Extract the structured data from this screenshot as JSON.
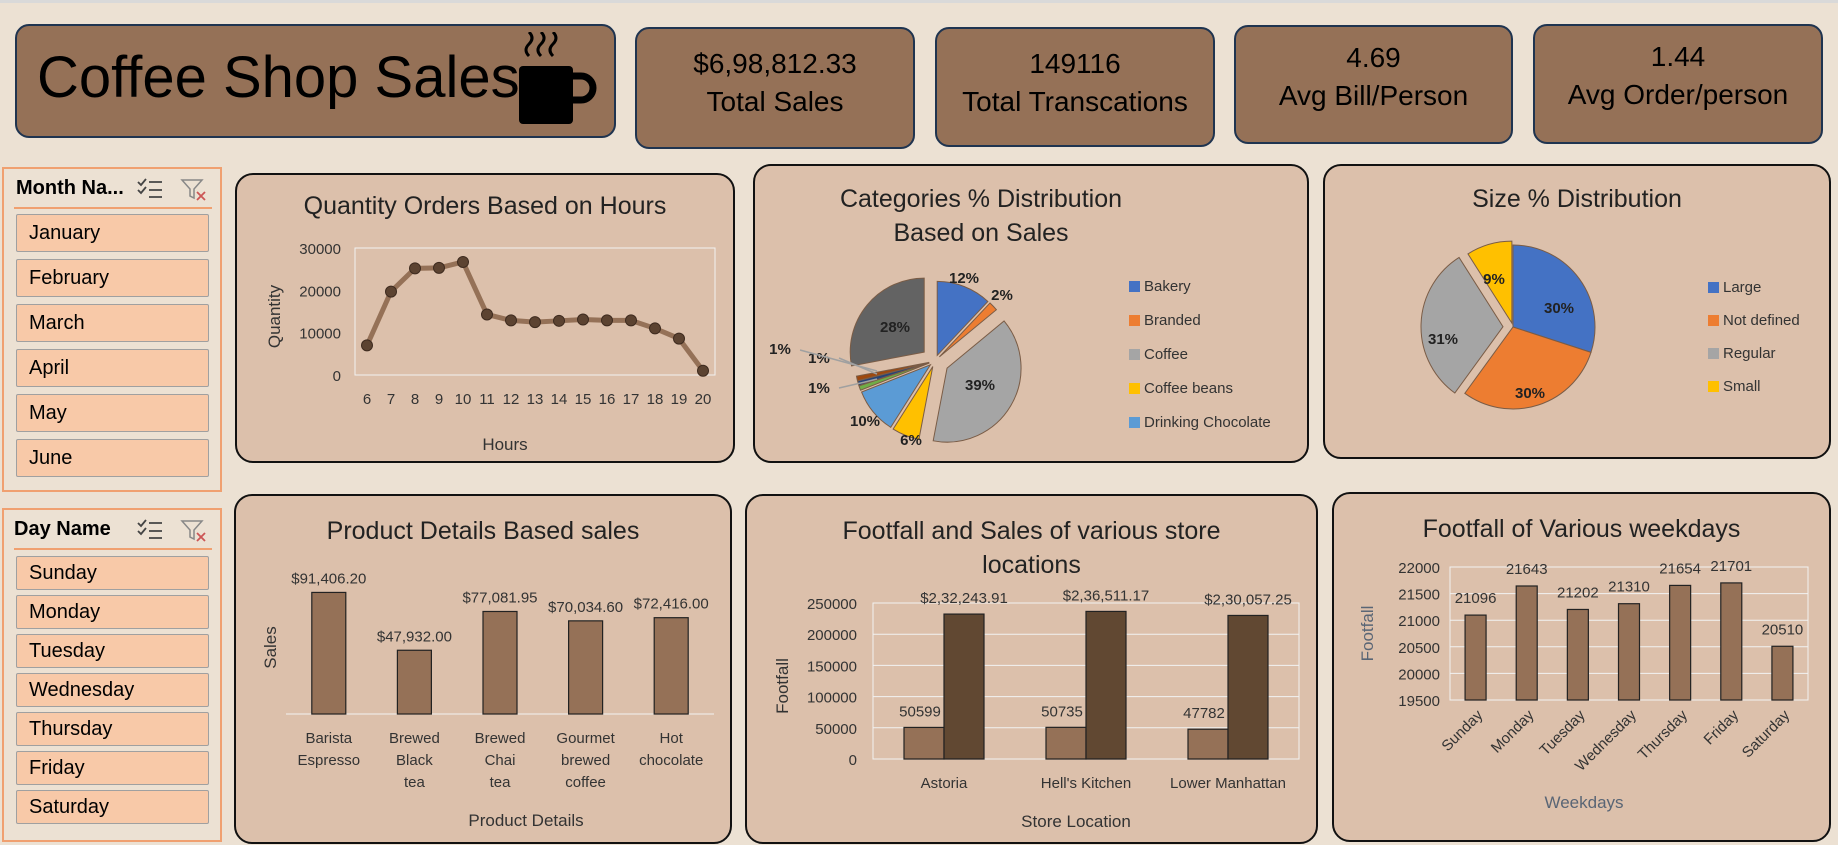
{
  "title": "Coffee Shop Sales",
  "kpis": [
    {
      "value": "$6,98,812.33",
      "label": "Total Sales"
    },
    {
      "value": "149116",
      "label": "Total Transcations"
    },
    {
      "value": "4.69",
      "label": "Avg Bill/Person"
    },
    {
      "value": "1.44",
      "label": "Avg Order/person"
    }
  ],
  "month_slicer": {
    "header": "Month Na...",
    "items": [
      "January",
      "February",
      "March",
      "April",
      "May",
      "June"
    ]
  },
  "day_slicer": {
    "header": "Day Name",
    "items": [
      "Sunday",
      "Monday",
      "Tuesday",
      "Wednesday",
      "Thursday",
      "Friday",
      "Saturday"
    ]
  },
  "colors": {
    "brown_light": "#957157",
    "brown_dark": "#614832",
    "panel": "#dcc0ab",
    "line": "#957157",
    "line_marker": "#5c4331"
  },
  "chart_data": [
    {
      "id": "hours",
      "type": "line",
      "title": "Quantity Orders Based on Hours",
      "xlabel": "Hours",
      "ylabel": "Quantity",
      "x": [
        "6",
        "7",
        "8",
        "9",
        "10",
        "11",
        "12",
        "13",
        "14",
        "15",
        "16",
        "17",
        "18",
        "19",
        "20"
      ],
      "values": [
        7000,
        19700,
        25200,
        25300,
        26700,
        14300,
        12900,
        12500,
        12800,
        13100,
        12900,
        12900,
        11000,
        8600,
        1000
      ],
      "ylim": [
        0,
        30000
      ],
      "yticks": [
        "30000",
        "20000",
        "10000",
        "0"
      ],
      "grid": false
    },
    {
      "id": "categories",
      "type": "pie",
      "title": "Categories % Distribution Based on Sales",
      "legend": [
        "Bakery",
        "Branded",
        "Coffee",
        "Coffee beans",
        "Drinking Chocolate"
      ],
      "legend_position": "right",
      "slices": [
        {
          "name": "Bakery",
          "value": 12,
          "label": "12%",
          "color": "#4472c4"
        },
        {
          "name": "Branded",
          "value": 2,
          "label": "2%",
          "color": "#ed7d31"
        },
        {
          "name": "Coffee",
          "value": 39,
          "label": "39%",
          "color": "#a5a5a5"
        },
        {
          "name": "Coffee beans",
          "value": 6,
          "label": "6%",
          "color": "#ffc000"
        },
        {
          "name": "Drinking Chocolate",
          "value": 10,
          "label": "10%",
          "color": "#5b9bd5"
        },
        {
          "name": "",
          "value": 1,
          "label": "1%",
          "color": "#70ad47"
        },
        {
          "name": "",
          "value": 1,
          "label": "1%",
          "color": "#264478"
        },
        {
          "name": "",
          "value": 1,
          "label": "1%",
          "color": "#9e480e"
        },
        {
          "name": "",
          "value": 28,
          "label": "28%",
          "color": "#636363"
        }
      ]
    },
    {
      "id": "size",
      "type": "pie",
      "title": "Size % Distribution",
      "legend": [
        "Large",
        "Not defined",
        "Regular",
        "Small"
      ],
      "legend_position": "right",
      "slices": [
        {
          "name": "Large",
          "value": 30,
          "label": "30%",
          "color": "#4472c4"
        },
        {
          "name": "Not defined",
          "value": 30,
          "label": "30%",
          "color": "#ed7d31"
        },
        {
          "name": "Regular",
          "value": 31,
          "label": "31%",
          "color": "#a5a5a5"
        },
        {
          "name": "Small",
          "value": 9,
          "label": "9%",
          "color": "#ffc000"
        }
      ]
    },
    {
      "id": "products",
      "type": "bar",
      "title": "Product Details Based sales",
      "xlabel": "Product Details",
      "ylabel": "Sales",
      "categories": [
        "Barista Espresso",
        "Brewed Black tea",
        "Brewed Chai tea",
        "Gourmet brewed coffee",
        "Hot chocolate"
      ],
      "values": [
        91406.2,
        47932.0,
        77081.95,
        70034.6,
        72416.0
      ],
      "value_labels": [
        "$91,406.20",
        "$47,932.00",
        "$77,081.95",
        "$70,034.60",
        "$72,416.00"
      ],
      "ylim": [
        0,
        100000
      ]
    },
    {
      "id": "stores",
      "type": "bar",
      "title": "Footfall and Sales of various store locations",
      "xlabel": "Store Location",
      "ylabel": "Footfall",
      "categories": [
        "Astoria",
        "Hell's Kitchen",
        "Lower Manhattan"
      ],
      "series": [
        {
          "values": [
            50599,
            50735,
            47782
          ],
          "labels": [
            "50599",
            "50735",
            "47782"
          ],
          "color": "#957157"
        },
        {
          "values": [
            232243.91,
            236511.17,
            230057.25
          ],
          "labels": [
            "$2,32,243.91",
            "$2,36,511.17",
            "$2,30,057.25"
          ],
          "color": "#614832"
        }
      ],
      "ylim": [
        0,
        250000
      ],
      "yticks": [
        "250000",
        "200000",
        "150000",
        "100000",
        "50000",
        "0"
      ],
      "grid": true
    },
    {
      "id": "weekdays",
      "type": "bar",
      "title": "Footfall of Various weekdays",
      "xlabel": "Weekdays",
      "ylabel": "Footfall",
      "categories": [
        "Sunday",
        "Monday",
        "Tuesday",
        "Wednesday",
        "Thursday",
        "Friday",
        "Saturday"
      ],
      "values": [
        21096,
        21643,
        21202,
        21310,
        21654,
        21701,
        20510
      ],
      "ylim": [
        19500,
        22000
      ],
      "yticks": [
        "22000",
        "21500",
        "21000",
        "20500",
        "20000",
        "19500"
      ],
      "grid": true
    }
  ]
}
